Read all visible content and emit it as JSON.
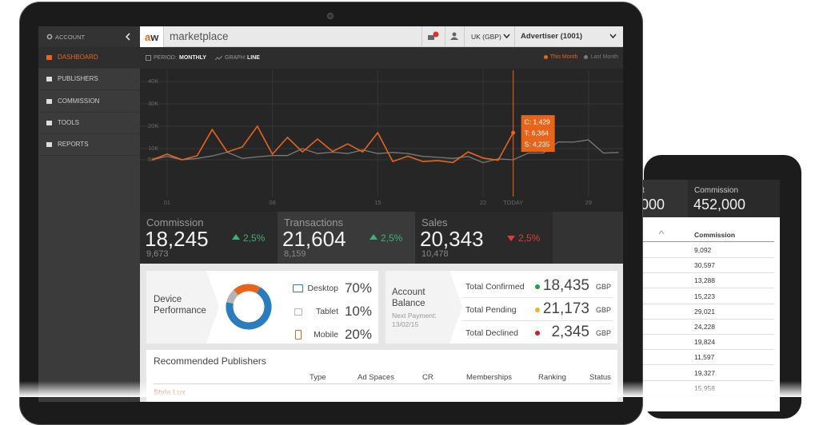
{
  "sidebar": {
    "header": "ACCOUNT",
    "active": 0,
    "items": [
      "DASHBOARD",
      "PUBLISHERS",
      "COMMISSION",
      "TOOLS",
      "REPORTS"
    ]
  },
  "topbar": {
    "logo": "aw",
    "app": "marketplace",
    "currency": "UK (GBP)",
    "account": "Advertiser (1001)"
  },
  "toolbar": {
    "period_label": "PERIOD:",
    "period": "MONTHLY",
    "graph_label": "GRAPH:",
    "graph": "LINE"
  },
  "chart_data": [
    {
      "type": "line",
      "x": [
        0,
        1,
        2,
        3,
        4,
        5,
        6,
        7,
        8,
        9,
        10,
        11,
        12,
        13,
        14,
        15,
        16,
        17,
        18,
        19,
        20,
        21,
        22,
        23,
        24,
        25,
        26,
        27,
        28,
        29,
        30,
        31
      ],
      "xlim": [
        -0.8,
        31.3
      ],
      "xticks": [
        {
          "value": 1,
          "label": "01"
        },
        {
          "value": 8,
          "label": "08"
        },
        15,
        22,
        {
          "value": 24,
          "label": "TODAY"
        },
        29
      ],
      "ylim": [
        0,
        45000
      ],
      "yticks": [
        {
          "value": 5000,
          "label": "5K"
        },
        {
          "value": 10000,
          "label": "10K"
        },
        {
          "value": 20000,
          "label": "20K"
        },
        {
          "value": 30000,
          "label": "30K"
        },
        {
          "value": 40000,
          "label": "40K"
        }
      ],
      "grid": true,
      "highlight_index": 24,
      "annotations": [
        "C: 1,429",
        "T: 6,364",
        "S: 4,235"
      ],
      "series": [
        {
          "name": "This Month",
          "color": "#e8641b",
          "values": [
            5000,
            7500,
            5000,
            6800,
            18500,
            8500,
            10700,
            20000,
            7500,
            15000,
            8500,
            14300,
            8700,
            12100,
            8500,
            17100,
            4200,
            6600,
            4200,
            4600,
            3800,
            8500,
            5800,
            4800,
            17100,
            null,
            null,
            null,
            null,
            null,
            null,
            null
          ]
        },
        {
          "name": "Last Month",
          "color": "#7a7a7a",
          "values": [
            5000,
            6500,
            5000,
            5600,
            6700,
            8400,
            5600,
            6300,
            6900,
            6900,
            10000,
            7800,
            8400,
            7800,
            9400,
            7800,
            8300,
            7800,
            6500,
            6100,
            5600,
            6500,
            3700,
            5400,
            5000,
            8000,
            8000,
            13000,
            12900,
            13900,
            8000,
            8300
          ]
        }
      ]
    },
    {
      "type": "pie",
      "categories": [
        "Desktop",
        "Tablet",
        "Mobile"
      ],
      "values": [
        70,
        10,
        20
      ],
      "value_labels": [
        "70%",
        "10%",
        "20%"
      ],
      "colors": [
        "#2b7bbf",
        "#b5b5b5",
        "#e8641b"
      ]
    }
  ],
  "stats": [
    {
      "label": "Commission",
      "value": "18,245",
      "change": "2,5%",
      "direction": "up",
      "previous": "9,673"
    },
    {
      "label": "Transactions",
      "value": "21,604",
      "change": "2,5%",
      "direction": "up",
      "previous": "8,159"
    },
    {
      "label": "Sales",
      "value": "20,343",
      "change": "2,5%",
      "direction": "down",
      "previous": "10,478"
    }
  ],
  "device": {
    "title": "Device Performance"
  },
  "balance": {
    "title": "Account Balance",
    "next_payment_label": "Next Payment:",
    "next_payment": "13/02/15",
    "rows": [
      {
        "label": "Total Confirmed",
        "amount": "18,435",
        "currency": "GBP",
        "color": "#2a9d3c"
      },
      {
        "label": "Total Pending",
        "amount": "21,173",
        "currency": "GBP",
        "color": "#f0b323"
      },
      {
        "label": "Total Declined",
        "amount": "2,345",
        "currency": "GBP",
        "color": "#c8202a"
      }
    ]
  },
  "publishers": {
    "title": "Recommended Publishers",
    "columns": [
      "Type",
      "Ad Spaces",
      "CR",
      "Memberships",
      "Ranking",
      "Status"
    ],
    "rows": [
      [
        "Style Lux"
      ]
    ]
  },
  "tablet": {
    "left_label": "t",
    "left_value": "000",
    "label": "Commission",
    "value": "452,000",
    "table_header": "Commission",
    "rows": [
      "9,092",
      "30,597",
      "13,288",
      "15,223",
      "29,021",
      "24,228",
      "19,824",
      "11,597",
      "19,327",
      "15,958"
    ]
  }
}
